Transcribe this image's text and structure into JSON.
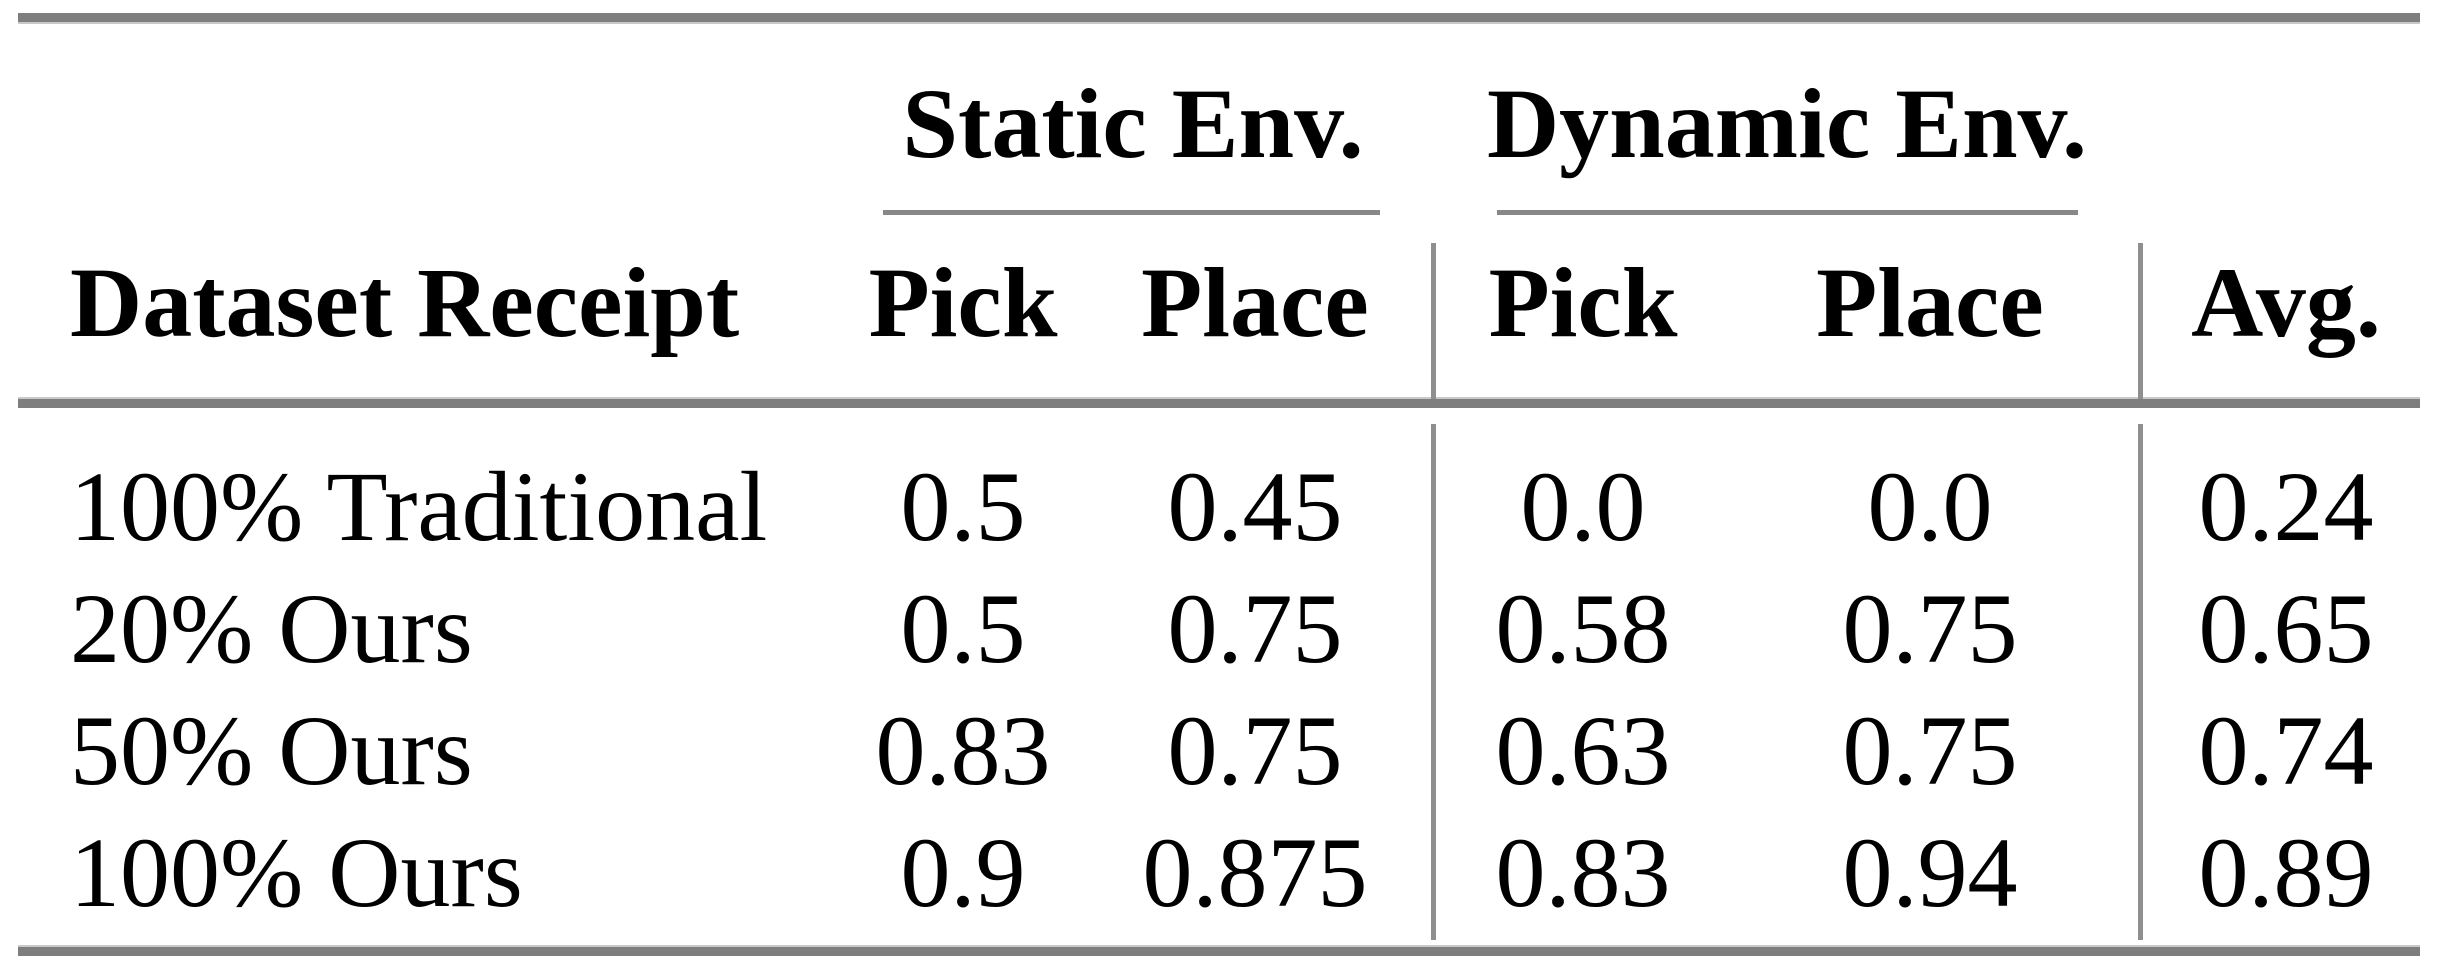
{
  "table": {
    "group_headers": {
      "static": "Static Env.",
      "dynamic": "Dynamic Env."
    },
    "columns": {
      "dataset": "Dataset Receipt",
      "static_pick": "Pick",
      "static_place": "Place",
      "dynamic_pick": "Pick",
      "dynamic_place": "Place",
      "avg": "Avg."
    },
    "rows": [
      {
        "label": "100% Traditional",
        "values": [
          "0.5",
          "0.45",
          "0.0",
          "0.0",
          "0.24"
        ]
      },
      {
        "label": "20% Ours",
        "values": [
          "0.5",
          "0.75",
          "0.58",
          "0.75",
          "0.65"
        ]
      },
      {
        "label": "50% Ours",
        "values": [
          "0.83",
          "0.75",
          "0.63",
          "0.75",
          "0.74"
        ]
      },
      {
        "label": "100% Ours",
        "values": [
          "0.9",
          "0.875",
          "0.83",
          "0.94",
          "0.89"
        ]
      }
    ],
    "colors": {
      "rule": "#7e7e7e",
      "rule_edge": "#c9c9c9",
      "divider": "#8f8f8f",
      "text": "#000000",
      "background": "#ffffff"
    }
  }
}
